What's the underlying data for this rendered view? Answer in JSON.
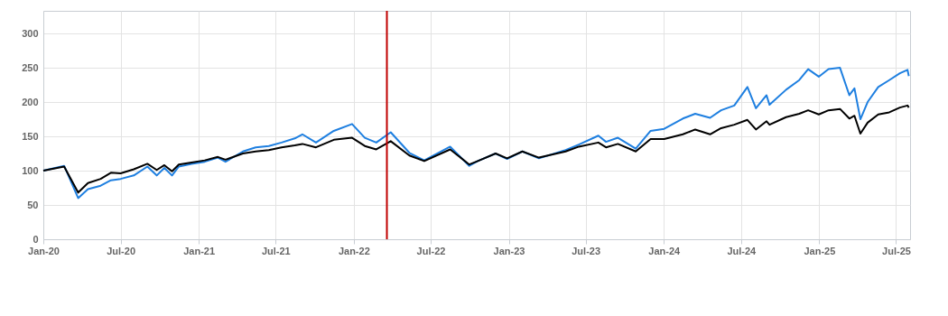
{
  "chart_data": {
    "type": "line",
    "x": [
      "2020-01-01",
      "2020-02-19",
      "2020-03-23",
      "2020-04-15",
      "2020-05-15",
      "2020-06-08",
      "2020-07-01",
      "2020-08-01",
      "2020-09-02",
      "2020-09-24",
      "2020-10-12",
      "2020-10-30",
      "2020-11-15",
      "2020-12-15",
      "2021-01-15",
      "2021-02-15",
      "2021-03-05",
      "2021-04-15",
      "2021-05-15",
      "2021-06-15",
      "2021-07-15",
      "2021-08-15",
      "2021-09-02",
      "2021-10-04",
      "2021-11-15",
      "2021-12-28",
      "2022-01-27",
      "2022-02-23",
      "2022-03-29",
      "2022-05-12",
      "2022-06-16",
      "2022-08-16",
      "2022-09-30",
      "2022-10-20",
      "2022-12-01",
      "2022-12-28",
      "2023-02-02",
      "2023-03-13",
      "2023-05-15",
      "2023-06-15",
      "2023-07-31",
      "2023-08-18",
      "2023-09-15",
      "2023-10-27",
      "2023-12-01",
      "2024-01-02",
      "2024-02-15",
      "2024-03-15",
      "2024-04-19",
      "2024-05-15",
      "2024-06-15",
      "2024-07-16",
      "2024-08-05",
      "2024-08-30",
      "2024-09-06",
      "2024-10-15",
      "2024-11-15",
      "2024-12-06",
      "2024-12-31",
      "2025-01-23",
      "2025-02-19",
      "2025-03-13",
      "2025-03-25",
      "2025-04-08",
      "2025-04-25",
      "2025-05-20",
      "2025-06-15",
      "2025-07-10",
      "2025-07-28",
      "2025-07-31"
    ],
    "series": [
      {
        "color": "#1e7fe0",
        "values": [
          100,
          107,
          60,
          73,
          78,
          86,
          88,
          93,
          106,
          93,
          104,
          93,
          106,
          110,
          113,
          119,
          113,
          128,
          134,
          136,
          141,
          147,
          153,
          141,
          158,
          168,
          148,
          141,
          156,
          126,
          115,
          135,
          107,
          114,
          125,
          117,
          128,
          118,
          130,
          138,
          151,
          142,
          148,
          132,
          158,
          161,
          176,
          183,
          177,
          188,
          195,
          222,
          191,
          210,
          196,
          218,
          232,
          248,
          237,
          248,
          250,
          210,
          220,
          175,
          200,
          222,
          232,
          242,
          247,
          238
        ]
      },
      {
        "color": "#000000",
        "values": [
          100,
          106,
          68,
          82,
          88,
          97,
          96,
          102,
          110,
          101,
          108,
          99,
          109,
          112,
          115,
          120,
          116,
          125,
          128,
          130,
          134,
          137,
          139,
          134,
          145,
          148,
          136,
          131,
          143,
          122,
          114,
          131,
          109,
          114,
          125,
          118,
          128,
          119,
          128,
          135,
          141,
          134,
          139,
          128,
          146,
          146,
          153,
          160,
          153,
          162,
          167,
          174,
          160,
          172,
          167,
          178,
          183,
          188,
          182,
          188,
          190,
          176,
          180,
          154,
          170,
          182,
          185,
          192,
          195,
          192
        ]
      }
    ],
    "xlim": [
      "2020-01-01",
      "2025-08-03"
    ],
    "xticks": [
      {
        "value": "2020-01-01",
        "label": "Jan-20"
      },
      {
        "value": "2020-07-01",
        "label": "Jul-20"
      },
      {
        "value": "2021-01-01",
        "label": "Jan-21"
      },
      {
        "value": "2021-07-01",
        "label": "Jul-21"
      },
      {
        "value": "2022-01-01",
        "label": "Jan-22"
      },
      {
        "value": "2022-07-01",
        "label": "Jul-22"
      },
      {
        "value": "2023-01-01",
        "label": "Jan-23"
      },
      {
        "value": "2023-07-01",
        "label": "Jul-23"
      },
      {
        "value": "2024-01-01",
        "label": "Jan-24"
      },
      {
        "value": "2024-07-01",
        "label": "Jul-24"
      },
      {
        "value": "2025-01-01",
        "label": "Jan-25"
      },
      {
        "value": "2025-07-01",
        "label": "Jul-25"
      }
    ],
    "ylim": [
      0,
      333
    ],
    "yticks": [
      0,
      50,
      100,
      150,
      200,
      250,
      300
    ],
    "grid": true,
    "ref_lines": [
      {
        "axis": "x",
        "value": "2022-03-20",
        "color": "#c00000"
      }
    ]
  }
}
